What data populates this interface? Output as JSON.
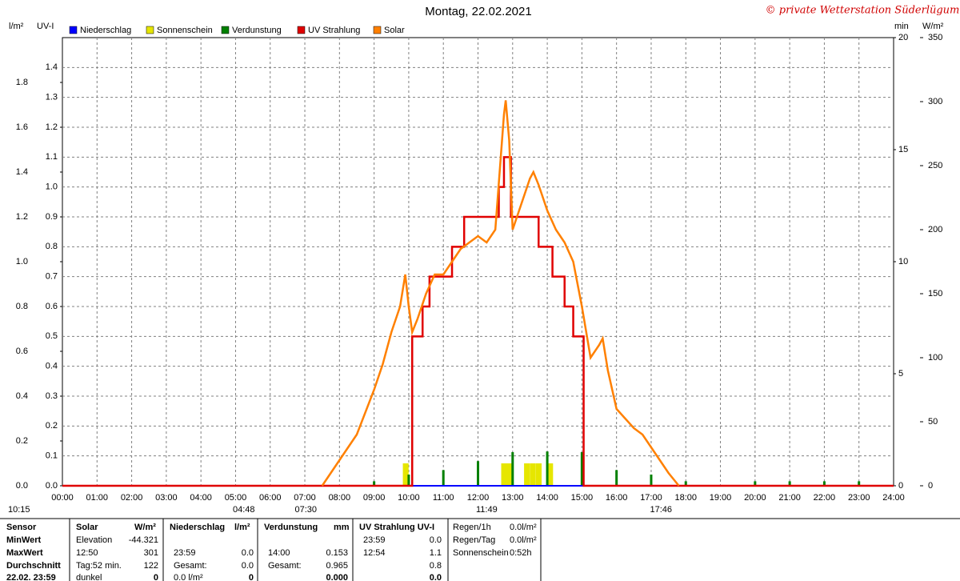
{
  "chart_data": {
    "type": "line",
    "title": "Montag, 22.02.2021",
    "credit": "© private Wetterstation Süderlügum",
    "xlim": [
      0,
      24
    ],
    "xticks": [
      {
        "value": 0,
        "label": "00:00"
      },
      {
        "value": 1,
        "label": "01:00"
      },
      {
        "value": 2,
        "label": "02:00"
      },
      {
        "value": 3,
        "label": "03:00"
      },
      {
        "value": 4,
        "label": "04:00"
      },
      {
        "value": 5,
        "label": "05:00"
      },
      {
        "value": 6,
        "label": "06:00"
      },
      {
        "value": 7,
        "label": "07:00"
      },
      {
        "value": 8,
        "label": "08:00"
      },
      {
        "value": 9,
        "label": "09:00"
      },
      {
        "value": 10,
        "label": "10:00"
      },
      {
        "value": 11,
        "label": "11:00"
      },
      {
        "value": 12,
        "label": "12:00"
      },
      {
        "value": 13,
        "label": "13:00"
      },
      {
        "value": 14,
        "label": "14:00"
      },
      {
        "value": 15,
        "label": "15:00"
      },
      {
        "value": 16,
        "label": "16:00"
      },
      {
        "value": 17,
        "label": "17:00"
      },
      {
        "value": 18,
        "label": "18:00"
      },
      {
        "value": 19,
        "label": "19:00"
      },
      {
        "value": 20,
        "label": "20:00"
      },
      {
        "value": 21,
        "label": "21:00"
      },
      {
        "value": 22,
        "label": "22:00"
      },
      {
        "value": 23,
        "label": "23:00"
      },
      {
        "value": 24,
        "label": "24:00"
      }
    ],
    "y_label": "l/m²",
    "ylim": [
      0,
      2.0
    ],
    "yticks": [
      {
        "value": 0,
        "label": "0.0"
      },
      0.2,
      0.4,
      0.6,
      0.8,
      {
        "value": 1,
        "label": "1.0"
      },
      1.2,
      1.4,
      1.6,
      1.8
    ],
    "y2_label": "UV-I",
    "y2lim": [
      0,
      1.5
    ],
    "y2ticks": [
      {
        "value": 0,
        "label": "0.0"
      },
      0.1,
      0.2,
      0.3,
      0.4,
      0.5,
      0.6,
      0.7,
      0.8,
      0.9,
      {
        "value": 1,
        "label": "1.0"
      },
      1.1,
      1.2,
      1.3,
      1.4
    ],
    "y3_label": "min",
    "y3lim": [
      0,
      20
    ],
    "y3ticks": [
      0,
      5,
      10,
      15,
      20
    ],
    "y4_label": "W/m²",
    "y4lim": [
      0,
      350
    ],
    "y4ticks": [
      0,
      50,
      100,
      150,
      200,
      250,
      300,
      350
    ],
    "grid": true,
    "series": [
      {
        "name": "Niederschlag",
        "color": "#0000ff",
        "axis": "y",
        "kind": "line",
        "x": [
          0,
          24
        ],
        "values": [
          0,
          0
        ]
      },
      {
        "name": "Sonnenschein",
        "color": "#e6e600",
        "axis": "y3",
        "kind": "bar",
        "x": [
          9.83,
          12.67,
          12.83,
          13.33,
          13.5,
          13.67,
          14.0
        ],
        "values": [
          1,
          1,
          1,
          1,
          1,
          1,
          1
        ]
      },
      {
        "name": "Verdunstung",
        "color": "#008000",
        "axis": "y",
        "kind": "bar",
        "x": [
          9,
          10,
          11,
          12,
          13,
          14,
          15,
          16,
          17,
          18,
          20,
          21,
          22,
          23
        ],
        "values": [
          0.02,
          0.05,
          0.07,
          0.11,
          0.15,
          0.153,
          0.15,
          0.07,
          0.05,
          0.02,
          0.02,
          0.02,
          0.02,
          0.02
        ]
      },
      {
        "name": "UV Strahlung",
        "color": "#e00000",
        "axis": "y2",
        "kind": "line",
        "x": [
          0,
          10.1,
          10.1,
          10.4,
          10.4,
          10.6,
          10.6,
          11.25,
          11.25,
          11.6,
          11.6,
          12.6,
          12.6,
          12.75,
          12.75,
          12.95,
          12.95,
          13.75,
          13.75,
          14.15,
          14.15,
          14.5,
          14.5,
          14.75,
          14.75,
          15.05,
          15.05,
          24
        ],
        "values": [
          0,
          0,
          0.5,
          0.5,
          0.6,
          0.6,
          0.7,
          0.7,
          0.8,
          0.8,
          0.9,
          0.9,
          1.0,
          1.0,
          1.1,
          1.1,
          0.9,
          0.9,
          0.8,
          0.8,
          0.7,
          0.7,
          0.6,
          0.6,
          0.5,
          0.5,
          0,
          0
        ]
      },
      {
        "name": "Solar",
        "color": "#ff8000",
        "axis": "y4",
        "kind": "line",
        "x": [
          7.5,
          7.75,
          8.0,
          8.5,
          9.0,
          9.25,
          9.5,
          9.75,
          9.9,
          10.0,
          10.1,
          10.25,
          10.5,
          10.75,
          11.0,
          11.25,
          11.5,
          11.75,
          12.0,
          12.25,
          12.5,
          12.75,
          12.8,
          12.9,
          13.0,
          13.25,
          13.5,
          13.6,
          13.75,
          14.0,
          14.25,
          14.5,
          14.75,
          15.0,
          15.25,
          15.5,
          15.6,
          15.75,
          16.0,
          16.5,
          16.75,
          17.0,
          17.5,
          17.8
        ],
        "values": [
          0,
          10,
          20,
          40,
          75,
          95,
          120,
          140,
          165,
          140,
          120,
          130,
          150,
          165,
          165,
          175,
          185,
          190,
          195,
          190,
          200,
          290,
          301,
          270,
          200,
          220,
          240,
          245,
          235,
          215,
          200,
          190,
          175,
          140,
          100,
          110,
          115,
          90,
          60,
          45,
          40,
          30,
          10,
          0
        ]
      }
    ],
    "markers": [
      "10:15",
      "04:48",
      "07:30",
      "11:49",
      "17:46"
    ]
  },
  "stats": {
    "row_labels": [
      "Sensor",
      "MinWert",
      "MaxWert",
      "Durchschnitt",
      "22.02. 23:59"
    ],
    "groups": [
      {
        "header": [
          "Solar",
          "W/m²"
        ],
        "rows": [
          [
            "Elevation",
            "-44.321"
          ],
          [
            "12:50",
            "301"
          ],
          [
            "Tag:52 min.",
            "122"
          ],
          [
            "dunkel",
            "0"
          ]
        ]
      },
      {
        "header": [
          "Niederschlag",
          "l/m²"
        ],
        "rows": [
          null,
          [
            "23:59",
            "0.0"
          ],
          [
            "Gesamt:",
            "0.0"
          ],
          [
            "0.0 l/m²",
            "0"
          ]
        ]
      },
      {
        "header": [
          "Verdunstung",
          "mm"
        ],
        "rows": [
          null,
          [
            "14:00",
            "0.153"
          ],
          [
            "Gesamt:",
            "0.965"
          ],
          [
            null,
            "0.000"
          ]
        ]
      },
      {
        "header": [
          "UV Strahlung UV-I",
          null
        ],
        "rows": [
          [
            "23:59",
            "0.0"
          ],
          [
            "12:54",
            "1.1"
          ],
          [
            null,
            "0.8"
          ],
          [
            null,
            "0.0"
          ]
        ]
      }
    ],
    "extra": [
      [
        "Regen/1h",
        "0.0l/m²"
      ],
      [
        "Regen/Tag",
        "0.0l/m²"
      ],
      [
        "Sonnenschein",
        "0:52h"
      ]
    ]
  }
}
